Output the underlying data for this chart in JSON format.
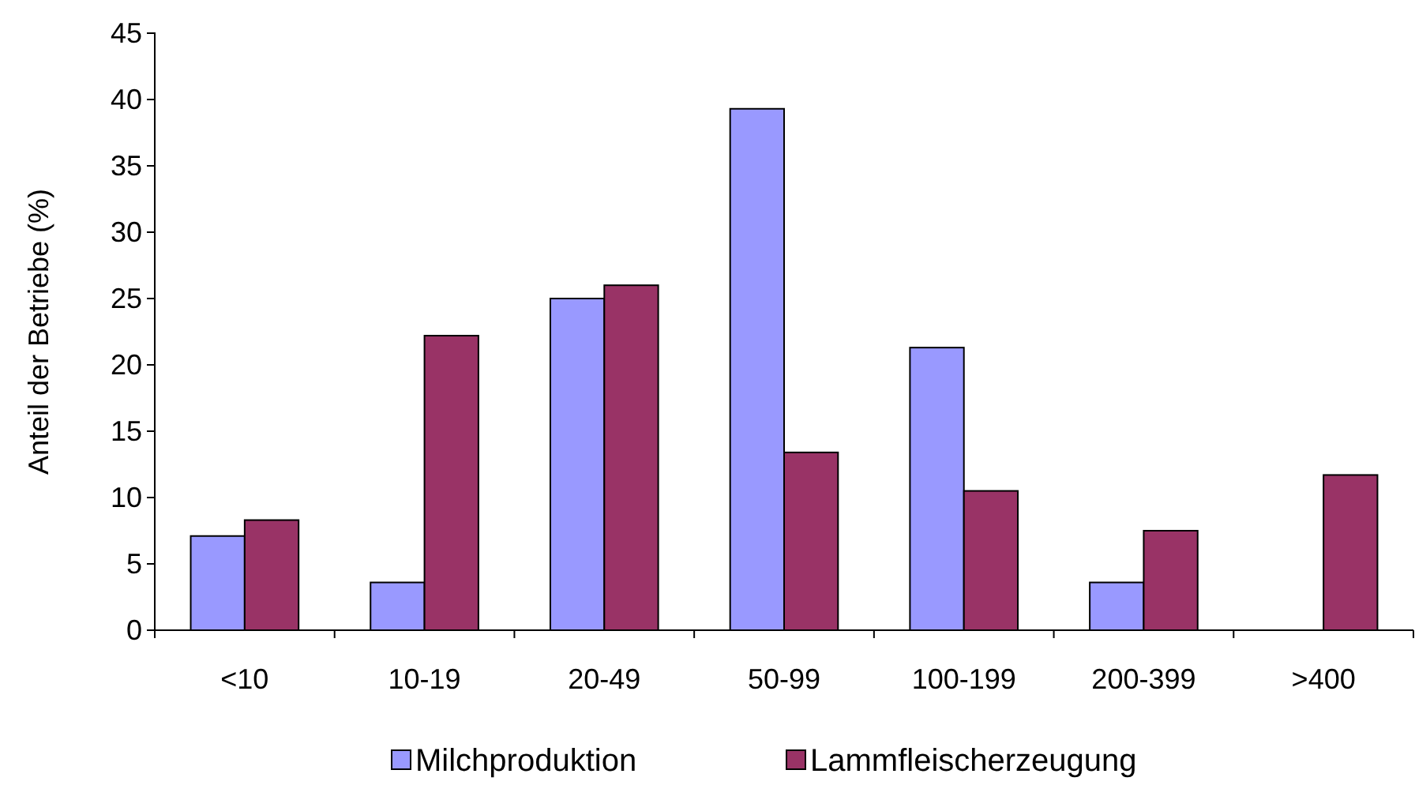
{
  "chart_data": {
    "type": "bar",
    "ylabel": "Anteil der Betriebe (%)",
    "categories": [
      "<10",
      "10-19",
      "20-49",
      "50-99",
      "100-199",
      "200-399",
      ">400"
    ],
    "series": [
      {
        "name": "Milchproduktion",
        "color": "#9999ff",
        "values": [
          7.1,
          3.6,
          25,
          39.3,
          21.3,
          3.6,
          null
        ]
      },
      {
        "name": "Lammfleischerzeugung",
        "color": "#993366",
        "values": [
          8.3,
          22.2,
          26,
          13.4,
          10.5,
          7.5,
          11.7
        ]
      }
    ],
    "ylim": [
      0,
      45
    ],
    "yticks": [
      0,
      5,
      10,
      15,
      20,
      25,
      30,
      35,
      40,
      45
    ],
    "grid": false,
    "legend": "bottom"
  }
}
